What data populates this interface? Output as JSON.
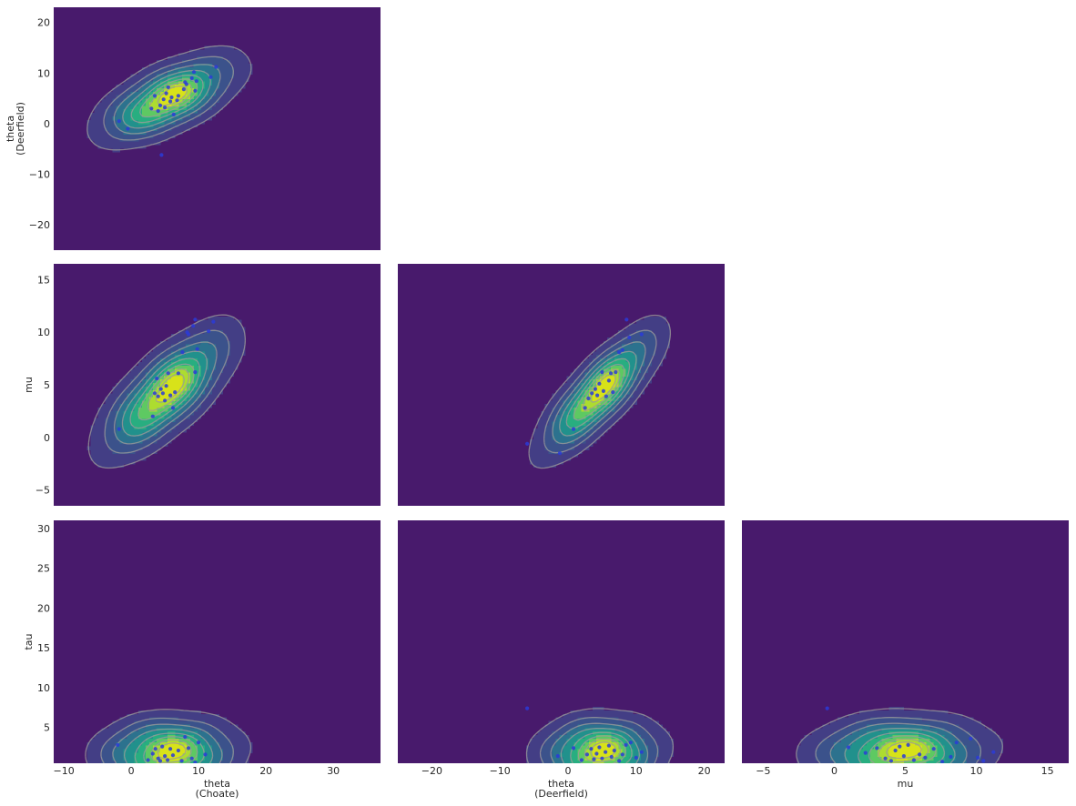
{
  "chart_data": {
    "type": "pair-kde",
    "description_free": true,
    "colors": {
      "background": "#481a6c",
      "levels": [
        "#433e85",
        "#3b528b",
        "#2c728e",
        "#21918c",
        "#28ae80",
        "#5ec962",
        "#addc30",
        "#d8e219"
      ],
      "contour_line": "#9a9a9a",
      "points": "#2a3bd8"
    },
    "variables": {
      "theta_choate": {
        "label_lines": [
          "theta",
          "(Choate)"
        ],
        "lim": [
          -11.5,
          37
        ],
        "ticks": [
          -10,
          0,
          10,
          20,
          30
        ]
      },
      "theta_deerfield": {
        "label_lines": [
          "theta",
          "(Deerfield)"
        ],
        "lim": [
          -25,
          23
        ],
        "ticks": [
          -20,
          -10,
          0,
          10,
          20
        ]
      },
      "mu": {
        "label_lines": [
          "mu"
        ],
        "lim": [
          -6.5,
          16.5
        ],
        "ticks": [
          -5,
          0,
          5,
          10,
          15
        ]
      },
      "tau": {
        "label_lines": [
          "tau"
        ],
        "lim": [
          0.5,
          31
        ],
        "ticks": [
          5,
          10,
          15,
          20,
          25,
          30
        ]
      }
    },
    "panels": [
      {
        "id": "deerfield-vs-choate",
        "row": 0,
        "col": 0,
        "x": "theta_choate",
        "y": "theta_deerfield",
        "kde": {
          "center": [
            5.5,
            5.0
          ],
          "sx": 4.9,
          "sy": 4.1,
          "rho": 0.62
        },
        "points": [
          [
            -1.8,
            0.5
          ],
          [
            -0.5,
            -1.0
          ],
          [
            3.0,
            3.0
          ],
          [
            3.5,
            5.5
          ],
          [
            4.0,
            2.5
          ],
          [
            4.3,
            3.6
          ],
          [
            4.5,
            -6.2
          ],
          [
            4.8,
            4.8
          ],
          [
            5.0,
            3.2
          ],
          [
            5.2,
            6.0
          ],
          [
            5.5,
            7.2
          ],
          [
            5.8,
            4.4
          ],
          [
            6.0,
            5.2
          ],
          [
            6.3,
            1.8
          ],
          [
            6.8,
            4.6
          ],
          [
            7.0,
            5.5
          ],
          [
            7.8,
            6.8
          ],
          [
            8.0,
            8.2
          ],
          [
            8.2,
            7.8
          ],
          [
            9.0,
            9.0
          ],
          [
            9.3,
            10.2
          ],
          [
            9.5,
            6.5
          ],
          [
            9.7,
            8.4
          ],
          [
            11.8,
            9.2
          ],
          [
            12.6,
            11.2
          ]
        ]
      },
      {
        "id": "mu-vs-choate",
        "row": 1,
        "col": 0,
        "x": "theta_choate",
        "y": "mu",
        "kde": {
          "center": [
            5.2,
            4.3
          ],
          "sx": 4.7,
          "sy": 2.9,
          "rho": 0.72
        },
        "points": [
          [
            -1.8,
            0.8
          ],
          [
            3.2,
            2.0
          ],
          [
            3.5,
            4.2
          ],
          [
            3.8,
            5.6
          ],
          [
            4.0,
            3.9
          ],
          [
            4.4,
            4.6
          ],
          [
            4.7,
            4.2
          ],
          [
            5.0,
            3.5
          ],
          [
            5.2,
            4.9
          ],
          [
            5.5,
            6.1
          ],
          [
            5.8,
            4.0
          ],
          [
            6.2,
            2.8
          ],
          [
            6.5,
            4.3
          ],
          [
            7.0,
            6.1
          ],
          [
            7.6,
            8.1
          ],
          [
            8.3,
            10.0
          ],
          [
            8.5,
            9.8
          ],
          [
            9.2,
            10.6
          ],
          [
            9.5,
            11.2
          ],
          [
            9.5,
            6.2
          ],
          [
            9.8,
            8.4
          ],
          [
            11.5,
            10.1
          ],
          [
            12.2,
            11.0
          ]
        ]
      },
      {
        "id": "mu-vs-deerfield",
        "row": 1,
        "col": 1,
        "x": "theta_deerfield",
        "y": "mu",
        "kde": {
          "center": [
            4.6,
            4.3
          ],
          "sx": 4.2,
          "sy": 2.9,
          "rho": 0.8
        },
        "points": [
          [
            -6.0,
            -0.6
          ],
          [
            -1.2,
            -1.5
          ],
          [
            0.8,
            0.8
          ],
          [
            2.5,
            2.8
          ],
          [
            3.0,
            3.7
          ],
          [
            3.5,
            4.2
          ],
          [
            4.0,
            4.6
          ],
          [
            4.3,
            4.0
          ],
          [
            4.6,
            5.1
          ],
          [
            5.0,
            6.2
          ],
          [
            5.2,
            4.4
          ],
          [
            5.6,
            3.9
          ],
          [
            6.0,
            5.4
          ],
          [
            6.3,
            6.1
          ],
          [
            6.6,
            4.3
          ],
          [
            7.0,
            6.2
          ],
          [
            7.5,
            8.1
          ],
          [
            8.0,
            8.3
          ],
          [
            8.6,
            11.2
          ],
          [
            9.0,
            9.5
          ],
          [
            10.8,
            9.8
          ]
        ]
      },
      {
        "id": "tau-vs-choate",
        "row": 2,
        "col": 0,
        "x": "theta_choate",
        "y": "tau",
        "kde": {
          "center": [
            5.5,
            1.8
          ],
          "sx": 4.9,
          "sy": 2.2,
          "rho": 0.05
        },
        "points": [
          [
            -2.0,
            2.8
          ],
          [
            2.5,
            0.9
          ],
          [
            3.2,
            1.7
          ],
          [
            3.6,
            2.3
          ],
          [
            4.0,
            1.1
          ],
          [
            4.3,
            0.8
          ],
          [
            4.6,
            2.6
          ],
          [
            5.0,
            1.4
          ],
          [
            5.4,
            0.9
          ],
          [
            5.8,
            2.3
          ],
          [
            6.2,
            1.5
          ],
          [
            7.0,
            2.1
          ],
          [
            7.5,
            0.8
          ],
          [
            8.0,
            3.8
          ],
          [
            8.5,
            2.4
          ],
          [
            9.0,
            1.1
          ],
          [
            9.5,
            0.6
          ],
          [
            10.0,
            3.1
          ],
          [
            11.0,
            1.6
          ]
        ]
      },
      {
        "id": "tau-vs-deerfield",
        "row": 2,
        "col": 1,
        "x": "theta_deerfield",
        "y": "tau",
        "kde": {
          "center": [
            4.7,
            1.9
          ],
          "sx": 4.3,
          "sy": 2.2,
          "rho": 0.05
        },
        "points": [
          [
            -6.0,
            7.4
          ],
          [
            -1.5,
            1.4
          ],
          [
            0.8,
            2.4
          ],
          [
            2.0,
            0.9
          ],
          [
            2.8,
            1.6
          ],
          [
            3.4,
            2.3
          ],
          [
            3.8,
            1.0
          ],
          [
            4.2,
            1.7
          ],
          [
            4.6,
            2.5
          ],
          [
            5.0,
            1.1
          ],
          [
            5.5,
            1.9
          ],
          [
            6.0,
            2.7
          ],
          [
            6.4,
            1.3
          ],
          [
            6.8,
            2.1
          ],
          [
            7.5,
            0.8
          ],
          [
            8.0,
            1.6
          ],
          [
            8.5,
            2.8
          ],
          [
            9.2,
            3.1
          ],
          [
            10.0,
            1.2
          ],
          [
            10.8,
            1.9
          ]
        ]
      },
      {
        "id": "tau-vs-mu",
        "row": 2,
        "col": 2,
        "x": "mu",
        "y": "tau",
        "kde": {
          "center": [
            4.6,
            1.9
          ],
          "sx": 2.9,
          "sy": 2.2,
          "rho": 0.05
        },
        "points": [
          [
            -0.5,
            7.4
          ],
          [
            1.0,
            2.5
          ],
          [
            2.2,
            1.8
          ],
          [
            3.0,
            2.4
          ],
          [
            3.6,
            1.1
          ],
          [
            4.0,
            0.8
          ],
          [
            4.3,
            2.1
          ],
          [
            4.6,
            2.6
          ],
          [
            4.9,
            1.4
          ],
          [
            5.2,
            2.8
          ],
          [
            5.6,
            0.9
          ],
          [
            6.0,
            1.6
          ],
          [
            6.4,
            1.2
          ],
          [
            7.0,
            2.3
          ],
          [
            7.6,
            0.7
          ],
          [
            8.2,
            1.3
          ],
          [
            8.6,
            3.1
          ],
          [
            9.6,
            3.6
          ],
          [
            10.1,
            1.2
          ],
          [
            10.5,
            0.8
          ],
          [
            11.2,
            1.9
          ]
        ]
      }
    ]
  }
}
